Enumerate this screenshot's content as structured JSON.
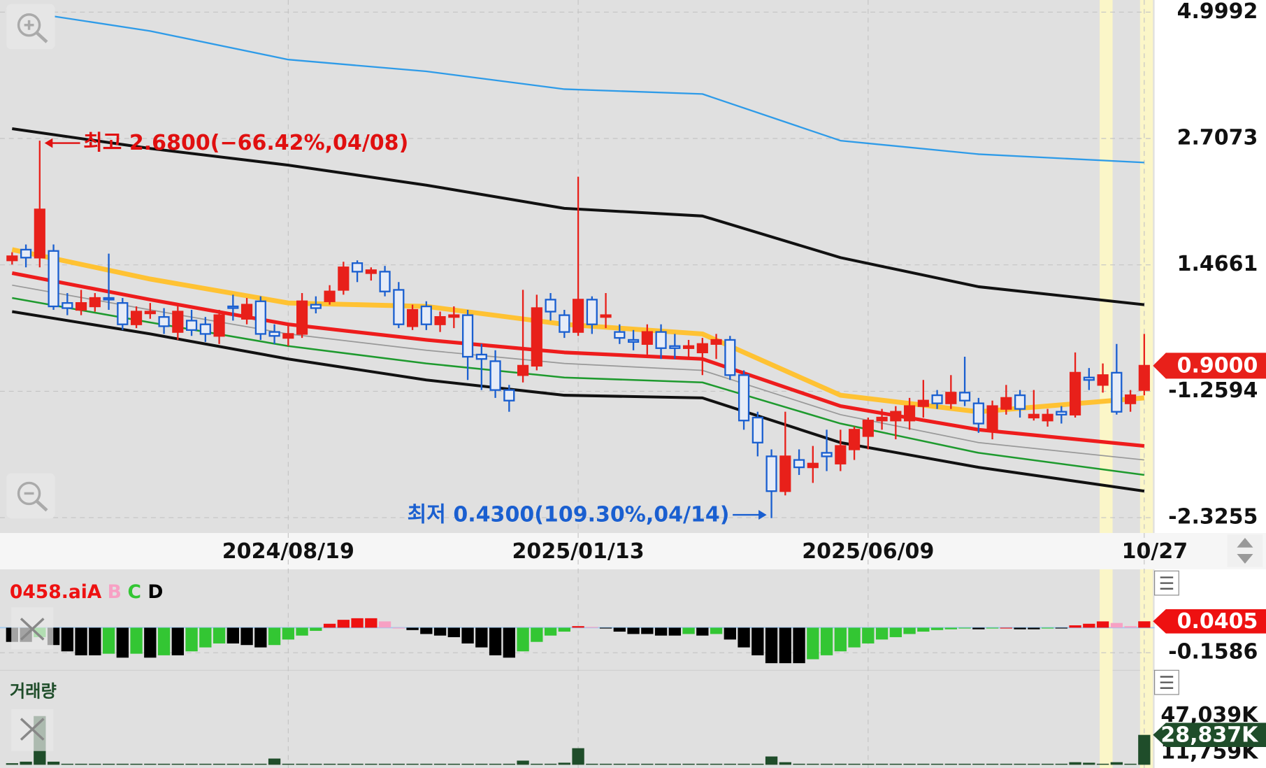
{
  "chart_data": [
    {
      "type": "candlestick",
      "log": true,
      "ylim": [
        0.4,
        5.3
      ],
      "axis_labels": [
        "4.9992",
        "2.7073",
        "1.4661",
        "-1.2594",
        "-2.3255"
      ],
      "current_label": "0.9000",
      "up_color": "#e8201a",
      "down_color": "#1a5fd0",
      "annotations": {
        "high": "최고 2.6800(−66.42%,04/08)",
        "low": "최저 0.4300(109.30%,04/14)"
      },
      "categories": [
        null,
        null,
        null,
        null,
        null,
        null,
        null,
        null,
        null,
        null,
        null,
        null,
        null,
        null,
        null,
        null,
        null,
        null,
        null,
        null,
        "2024/08/19",
        null,
        null,
        null,
        null,
        null,
        null,
        null,
        null,
        null,
        null,
        null,
        null,
        null,
        null,
        null,
        null,
        null,
        null,
        null,
        null,
        "2025/01/13",
        null,
        null,
        null,
        null,
        null,
        null,
        null,
        null,
        null,
        null,
        null,
        null,
        null,
        null,
        null,
        null,
        null,
        null,
        null,
        null,
        "2025/06/09",
        null,
        null,
        null,
        null,
        null,
        null,
        null,
        null,
        null,
        null,
        null,
        null,
        null,
        null,
        null,
        null,
        null,
        null,
        null,
        "10/27"
      ],
      "open": [
        1.5,
        1.58,
        1.52,
        1.57,
        1.22,
        1.18,
        1.2,
        1.25,
        1.22,
        1.1,
        1.16,
        1.14,
        1.06,
        1.12,
        1.1,
        1.04,
        1.2,
        1.13,
        1.23,
        1.06,
        1.03,
        1.05,
        1.21,
        1.23,
        1.3,
        1.48,
        1.41,
        1.42,
        1.3,
        1.09,
        1.2,
        1.1,
        1.14,
        1.15,
        0.95,
        0.92,
        0.8,
        0.86,
        0.9,
        1.24,
        1.15,
        1.06,
        1.24,
        1.14,
        1.06,
        1.02,
        1.0,
        1.06,
        0.99,
        0.98,
        0.96,
        1.0,
        1.02,
        0.86,
        0.7,
        0.58,
        0.49,
        0.57,
        0.55,
        0.59,
        0.56,
        0.6,
        0.64,
        0.69,
        0.69,
        0.69,
        0.74,
        0.78,
        0.75,
        0.79,
        0.75,
        0.66,
        0.73,
        0.78,
        0.7,
        0.69,
        0.72,
        0.71,
        0.85,
        0.82,
        0.87,
        0.75,
        0.8
      ],
      "high": [
        1.56,
        1.62,
        2.68,
        1.62,
        1.28,
        1.3,
        1.28,
        1.55,
        1.25,
        1.2,
        1.22,
        1.19,
        1.2,
        1.18,
        1.14,
        1.18,
        1.27,
        1.25,
        1.26,
        1.1,
        1.1,
        1.28,
        1.26,
        1.33,
        1.49,
        1.5,
        1.45,
        1.46,
        1.35,
        1.21,
        1.23,
        1.17,
        1.2,
        1.18,
        1.0,
        0.97,
        0.82,
        1.3,
        1.27,
        1.28,
        1.18,
        2.25,
        1.26,
        1.28,
        1.1,
        1.07,
        1.1,
        1.1,
        1.05,
        1.02,
        1.03,
        1.05,
        1.04,
        0.88,
        0.72,
        0.6,
        0.72,
        0.6,
        0.61,
        0.66,
        0.66,
        0.67,
        0.7,
        0.73,
        0.74,
        0.77,
        0.84,
        0.8,
        0.86,
        0.94,
        0.77,
        0.76,
        0.82,
        0.8,
        0.8,
        0.73,
        0.74,
        0.96,
        0.89,
        0.91,
        1.0,
        0.8,
        1.05
      ],
      "low": [
        1.47,
        1.45,
        1.45,
        1.18,
        1.15,
        1.15,
        1.17,
        1.18,
        1.07,
        1.08,
        1.13,
        1.05,
        1.02,
        1.04,
        1.01,
        1.0,
        1.12,
        1.1,
        1.02,
        1.0,
        0.99,
        1.03,
        1.16,
        1.21,
        1.27,
        1.35,
        1.36,
        1.26,
        1.08,
        1.07,
        1.07,
        1.06,
        1.08,
        0.84,
        0.8,
        0.77,
        0.72,
        0.83,
        0.88,
        1.12,
        1.03,
        1.04,
        1.05,
        1.08,
        1.0,
        0.97,
        0.95,
        0.93,
        0.93,
        0.93,
        0.86,
        0.93,
        0.84,
        0.66,
        0.58,
        0.43,
        0.48,
        0.53,
        0.51,
        0.54,
        0.54,
        0.57,
        0.6,
        0.66,
        0.63,
        0.66,
        0.7,
        0.73,
        0.73,
        0.74,
        0.65,
        0.63,
        0.71,
        0.7,
        0.69,
        0.67,
        0.68,
        0.7,
        0.8,
        0.79,
        0.71,
        0.72,
        0.78
      ],
      "close": [
        1.53,
        1.52,
        1.92,
        1.2,
        1.19,
        1.22,
        1.25,
        1.24,
        1.1,
        1.17,
        1.17,
        1.09,
        1.17,
        1.07,
        1.05,
        1.15,
        1.19,
        1.21,
        1.05,
        1.04,
        1.05,
        1.23,
        1.19,
        1.29,
        1.45,
        1.42,
        1.43,
        1.29,
        1.1,
        1.18,
        1.1,
        1.14,
        1.15,
        0.94,
        0.93,
        0.8,
        0.76,
        0.9,
        1.19,
        1.17,
        1.06,
        1.24,
        1.1,
        1.15,
        1.03,
        1.01,
        1.06,
        0.98,
        0.98,
        0.99,
        1.0,
        1.02,
        0.86,
        0.69,
        0.62,
        0.49,
        0.58,
        0.55,
        0.56,
        0.58,
        0.61,
        0.66,
        0.69,
        0.7,
        0.72,
        0.74,
        0.76,
        0.75,
        0.79,
        0.76,
        0.68,
        0.74,
        0.77,
        0.73,
        0.71,
        0.71,
        0.71,
        0.87,
        0.84,
        0.86,
        0.72,
        0.78,
        0.9
      ],
      "lines": [
        {
          "color": "#2e9be8",
          "x": [
            0,
            10,
            20,
            30,
            40,
            50,
            60,
            70,
            82
          ],
          "values": [
            5.05,
            4.56,
            3.97,
            3.75,
            3.44,
            3.36,
            2.68,
            2.51,
            2.41
          ]
        },
        {
          "color": "#111111",
          "x": [
            0,
            10,
            20,
            30,
            40,
            50,
            60,
            70,
            82
          ],
          "values": [
            2.84,
            2.58,
            2.38,
            2.16,
            1.93,
            1.86,
            1.52,
            1.32,
            1.21
          ]
        },
        {
          "color": "#ffc233",
          "x": [
            0,
            10,
            20,
            30,
            40,
            50,
            60,
            70,
            82
          ],
          "values": [
            1.58,
            1.37,
            1.22,
            1.2,
            1.1,
            1.05,
            0.78,
            0.72,
            0.77
          ]
        },
        {
          "color": "#ee1c1c",
          "x": [
            0,
            10,
            20,
            30,
            40,
            50,
            60,
            70,
            82
          ],
          "values": [
            1.41,
            1.24,
            1.1,
            1.02,
            0.96,
            0.93,
            0.74,
            0.66,
            0.61
          ]
        },
        {
          "color": "#999999",
          "x": [
            0,
            10,
            20,
            30,
            40,
            50,
            60,
            70,
            82
          ],
          "values": [
            1.33,
            1.18,
            1.05,
            0.97,
            0.91,
            0.88,
            0.71,
            0.62,
            0.57
          ]
        },
        {
          "color": "#1e9a2e",
          "x": [
            0,
            10,
            20,
            30,
            40,
            50,
            60,
            70,
            82
          ],
          "values": [
            1.25,
            1.11,
            0.99,
            0.91,
            0.85,
            0.83,
            0.68,
            0.59,
            0.53
          ]
        },
        {
          "color": "#111111",
          "x": [
            0,
            10,
            20,
            30,
            40,
            50,
            60,
            70,
            82
          ],
          "values": [
            1.17,
            1.05,
            0.93,
            0.84,
            0.78,
            0.77,
            0.62,
            0.55,
            0.49
          ]
        }
      ]
    },
    {
      "type": "bar",
      "title": "0458.ai",
      "ylim": [
        -0.27,
        0.37
      ],
      "yticks": [
        -0.1586
      ],
      "series": [
        {
          "name": "A",
          "color": "#ee1111"
        },
        {
          "name": "B",
          "color": "#f7a1c4"
        },
        {
          "name": "C",
          "color": "#33c633"
        },
        {
          "name": "D",
          "color": "#000000"
        }
      ],
      "values": [
        -0.09,
        -0.09,
        -0.06,
        -0.11,
        -0.15,
        -0.175,
        -0.175,
        -0.165,
        -0.19,
        -0.165,
        -0.19,
        -0.175,
        -0.175,
        -0.15,
        -0.125,
        -0.1,
        -0.1,
        -0.11,
        -0.125,
        -0.11,
        -0.075,
        -0.05,
        -0.02,
        0.025,
        0.05,
        0.06,
        0.06,
        0.04,
        0,
        -0.015,
        -0.04,
        -0.05,
        -0.06,
        -0.1,
        -0.125,
        -0.175,
        -0.19,
        -0.15,
        -0.09,
        -0.05,
        -0.025,
        0.01,
        0.005,
        -0.005,
        -0.025,
        -0.04,
        -0.04,
        -0.05,
        -0.05,
        -0.04,
        -0.05,
        -0.04,
        -0.075,
        -0.125,
        -0.175,
        -0.225,
        -0.225,
        -0.225,
        -0.2,
        -0.175,
        -0.15,
        -0.125,
        -0.1,
        -0.075,
        -0.06,
        -0.04,
        -0.025,
        -0.015,
        -0.01,
        -0.005,
        -0.01,
        -0.005,
        0,
        -0.01,
        -0.01,
        -0.005,
        -0.005,
        0.015,
        0.025,
        0.04,
        0.03,
        0.01,
        0.0405
      ]
    },
    {
      "type": "bar",
      "title": "거래량",
      "color": "#1f4d2a",
      "ylim": [
        0,
        79500000
      ],
      "yticks": [
        {
          "value": 47039000,
          "label": "47,039K"
        },
        {
          "value": 11759000,
          "label": "11,759K"
        }
      ],
      "values": [
        1500000,
        3000000,
        47000000,
        3000000,
        1000000,
        1000000,
        1000000,
        1000000,
        1000000,
        1000000,
        1000000,
        1000000,
        1000000,
        1000000,
        1000000,
        1000000,
        1000000,
        1000000,
        1000000,
        6000000,
        1000000,
        1000000,
        1000000,
        1000000,
        1000000,
        1000000,
        1000000,
        1000000,
        1000000,
        1000000,
        1000000,
        1000000,
        1000000,
        1000000,
        1000000,
        1000000,
        1000000,
        4000000,
        1000000,
        1000000,
        2000000,
        16000000,
        1000000,
        1000000,
        1000000,
        1000000,
        1000000,
        1000000,
        1000000,
        1000000,
        1000000,
        1000000,
        1000000,
        1000000,
        1000000,
        8000000,
        2500000,
        1000000,
        1000000,
        1000000,
        1000000,
        1000000,
        1000000,
        1000000,
        1000000,
        1000000,
        1000000,
        1000000,
        1000000,
        1000000,
        1000000,
        1000000,
        1000000,
        1000000,
        1000000,
        1000000,
        1000000,
        2500000,
        2000000,
        1000000,
        2500000,
        1000000,
        28837000
      ],
      "value_labels": [
        null,
        null,
        null,
        null,
        null,
        null,
        null,
        null,
        null,
        null,
        null,
        null,
        null,
        null,
        null,
        null,
        null,
        null,
        null,
        null,
        null,
        null,
        null,
        null,
        null,
        null,
        null,
        null,
        null,
        null,
        null,
        null,
        null,
        null,
        null,
        null,
        null,
        null,
        null,
        null,
        null,
        null,
        null,
        null,
        null,
        null,
        null,
        null,
        null,
        null,
        null,
        null,
        null,
        null,
        null,
        null,
        null,
        null,
        null,
        null,
        null,
        null,
        null,
        null,
        null,
        null,
        null,
        null,
        null,
        null,
        null,
        null,
        null,
        null,
        null,
        null,
        null,
        null,
        null,
        null,
        null,
        null,
        "28,837K"
      ]
    }
  ]
}
